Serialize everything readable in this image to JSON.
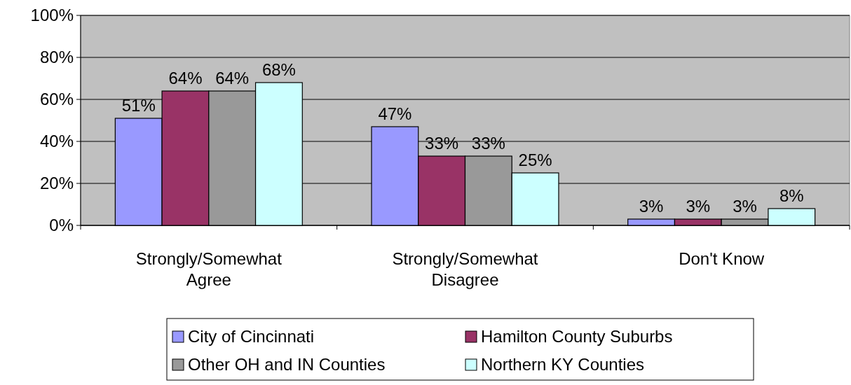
{
  "chart_data": {
    "type": "bar",
    "categories": [
      "Strongly/Somewhat Agree",
      "Strongly/Somewhat Disagree",
      "Don't Know"
    ],
    "series": [
      {
        "name": "City of Cincinnati",
        "color": "#9999ff",
        "values": [
          51,
          47,
          3
        ],
        "value_labels": [
          "51%",
          "47%",
          "3%"
        ]
      },
      {
        "name": "Hamilton County Suburbs",
        "color": "#993366",
        "values": [
          64,
          33,
          3
        ],
        "value_labels": [
          "64%",
          "33%",
          "3%"
        ]
      },
      {
        "name": "Other OH and IN Counties",
        "color": "#999999",
        "values": [
          64,
          33,
          3
        ],
        "value_labels": [
          "64%",
          "33%",
          "3%"
        ]
      },
      {
        "name": "Northern KY Counties",
        "color": "#ccffff",
        "values": [
          68,
          25,
          8
        ],
        "value_labels": [
          "68%",
          "25%",
          "8%"
        ]
      }
    ],
    "ylim": [
      0,
      100
    ],
    "yticks": [
      {
        "value": 0,
        "label": "0%"
      },
      {
        "value": 20,
        "label": "20%"
      },
      {
        "value": 40,
        "label": "40%"
      },
      {
        "value": 60,
        "label": "60%"
      },
      {
        "value": 80,
        "label": "80%"
      },
      {
        "value": 100,
        "label": "100%"
      }
    ],
    "grid": "y",
    "legend": "bottom"
  }
}
